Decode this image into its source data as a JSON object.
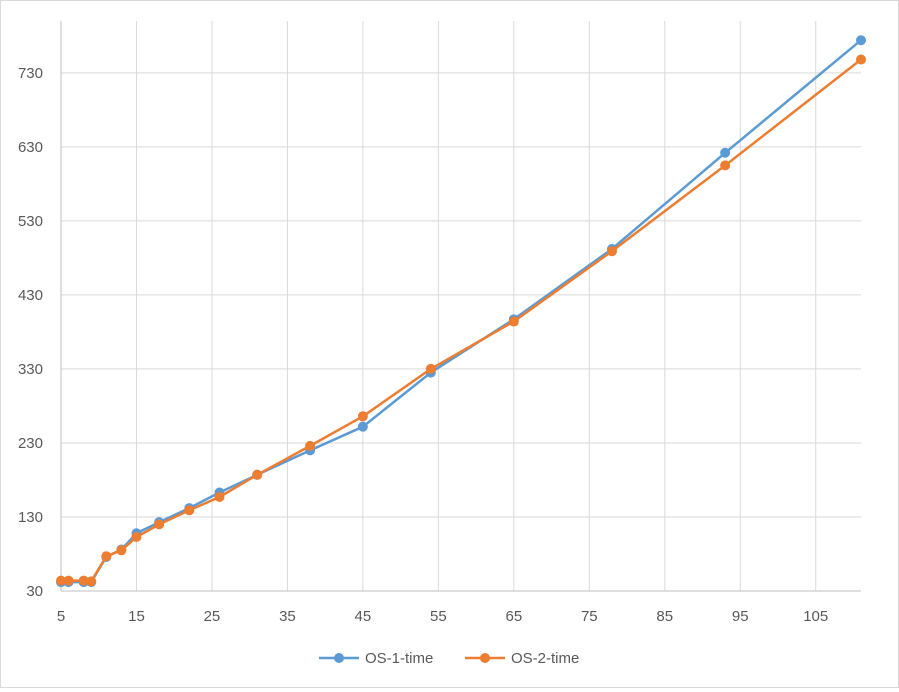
{
  "chart_data": {
    "type": "line",
    "title": "",
    "xlabel": "",
    "ylabel": "",
    "xlim": [
      5,
      111
    ],
    "ylim": [
      30,
      800
    ],
    "x_ticks": [
      5,
      15,
      25,
      35,
      45,
      55,
      65,
      75,
      85,
      95,
      105
    ],
    "y_ticks": [
      30,
      130,
      230,
      330,
      430,
      530,
      630,
      730
    ],
    "grid": true,
    "legend_position": "bottom",
    "series": [
      {
        "name": "OS-1-time",
        "color": "#5b9bd5",
        "x": [
          5,
          6,
          8,
          9,
          11,
          13,
          15,
          18,
          22,
          26,
          31,
          38,
          45,
          54,
          65,
          78,
          93,
          111
        ],
        "y": [
          42,
          42,
          42,
          42,
          76,
          86,
          108,
          123,
          142,
          163,
          187,
          220,
          252,
          325,
          397,
          492,
          622,
          774
        ]
      },
      {
        "name": "OS-2-time",
        "color": "#ed7d31",
        "x": [
          5,
          6,
          8,
          9,
          11,
          13,
          15,
          18,
          22,
          26,
          31,
          38,
          45,
          54,
          65,
          78,
          93,
          111
        ],
        "y": [
          44,
          44,
          44,
          43,
          77,
          85,
          103,
          120,
          139,
          157,
          187,
          226,
          266,
          330,
          394,
          489,
          605,
          748
        ]
      }
    ]
  }
}
